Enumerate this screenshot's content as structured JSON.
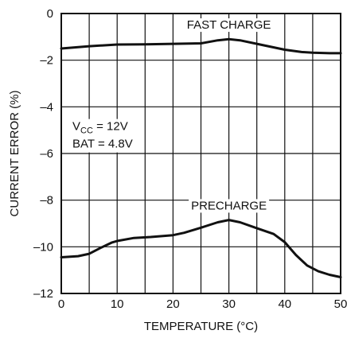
{
  "chart_data": {
    "type": "line",
    "xlabel": "TEMPERATURE (°C)",
    "ylabel": "CURRENT ERROR (%)",
    "xlim": [
      0,
      50
    ],
    "ylim": [
      -12,
      0
    ],
    "x_ticks": [
      "0",
      "10",
      "20",
      "30",
      "40",
      "50"
    ],
    "y_ticks": [
      "0",
      "–2",
      "–4",
      "–6",
      "–8",
      "–10",
      "–12"
    ],
    "grid": true,
    "conditions": {
      "vcc_prefix": "V",
      "vcc_sub": "CC",
      "vcc_value": " = 12V",
      "bat": "BAT = 4.8V"
    },
    "series": [
      {
        "name": "FAST CHARGE",
        "x": [
          0,
          5,
          10,
          15,
          20,
          25,
          28,
          30,
          32,
          35,
          40,
          43,
          45,
          48,
          50
        ],
        "y": [
          -1.5,
          -1.4,
          -1.33,
          -1.32,
          -1.3,
          -1.28,
          -1.15,
          -1.1,
          -1.15,
          -1.3,
          -1.55,
          -1.65,
          -1.68,
          -1.7,
          -1.7
        ]
      },
      {
        "name": "PRECHARGE",
        "x": [
          0,
          3,
          5,
          7,
          9,
          10,
          13,
          16,
          20,
          22,
          25,
          28,
          30,
          32,
          35,
          38,
          40,
          42,
          44,
          46,
          48,
          50
        ],
        "y": [
          -10.45,
          -10.4,
          -10.3,
          -10.05,
          -9.82,
          -9.75,
          -9.62,
          -9.58,
          -9.5,
          -9.4,
          -9.18,
          -8.95,
          -8.85,
          -8.95,
          -9.2,
          -9.45,
          -9.8,
          -10.35,
          -10.8,
          -11.05,
          -11.2,
          -11.3
        ]
      }
    ]
  }
}
